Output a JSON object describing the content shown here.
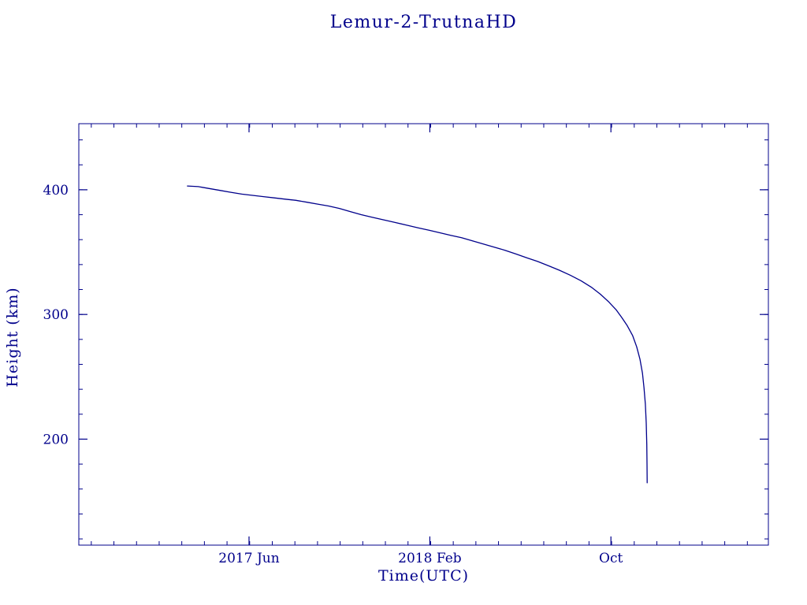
{
  "page": {
    "title": "Lemur-2-TrutnaHD"
  },
  "chart_data": {
    "type": "line",
    "title": "Lemur-2-TrutnaHD",
    "xlabel": "Time(UTC)",
    "ylabel": "Height (km)",
    "legend": "none",
    "grid": false,
    "background": "#ffffff",
    "line_color": "#00008b",
    "axis_color": "#00008b",
    "text_color": "#00008b",
    "xlim": [
      2016.79,
      2019.33
    ],
    "ylim": [
      115,
      453
    ],
    "x_ticks_major": [
      {
        "value": 2017.417,
        "label": "2017 Jun"
      },
      {
        "value": 2018.083,
        "label": "2018 Feb"
      },
      {
        "value": 2018.75,
        "label": "Oct"
      }
    ],
    "x_minor_step_years": 0.08333,
    "y_ticks_major": [
      {
        "value": 200,
        "label": "200"
      },
      {
        "value": 300,
        "label": "300"
      },
      {
        "value": 400,
        "label": "400"
      }
    ],
    "y_minor_step": 20,
    "series": [
      {
        "name": "Lemur-2-TrutnaHD height",
        "points": [
          [
            2017.19,
            403
          ],
          [
            2017.23,
            402.5
          ],
          [
            2017.27,
            401
          ],
          [
            2017.31,
            399.5
          ],
          [
            2017.35,
            398
          ],
          [
            2017.39,
            396.5
          ],
          [
            2017.43,
            395.5
          ],
          [
            2017.47,
            394.5
          ],
          [
            2017.51,
            393.5
          ],
          [
            2017.55,
            392.5
          ],
          [
            2017.59,
            391.5
          ],
          [
            2017.63,
            390
          ],
          [
            2017.67,
            388.5
          ],
          [
            2017.71,
            387
          ],
          [
            2017.75,
            385
          ],
          [
            2017.79,
            382.5
          ],
          [
            2017.83,
            380
          ],
          [
            2017.87,
            378
          ],
          [
            2017.91,
            376
          ],
          [
            2017.95,
            374
          ],
          [
            2018.0,
            371.5
          ],
          [
            2018.04,
            369.5
          ],
          [
            2018.08,
            367.5
          ],
          [
            2018.12,
            365.5
          ],
          [
            2018.16,
            363.5
          ],
          [
            2018.2,
            361.5
          ],
          [
            2018.24,
            359
          ],
          [
            2018.28,
            356.5
          ],
          [
            2018.32,
            354
          ],
          [
            2018.36,
            351.5
          ],
          [
            2018.4,
            348.5
          ],
          [
            2018.44,
            345.5
          ],
          [
            2018.48,
            342.5
          ],
          [
            2018.52,
            339
          ],
          [
            2018.56,
            335.5
          ],
          [
            2018.6,
            331.5
          ],
          [
            2018.64,
            327
          ],
          [
            2018.68,
            321.5
          ],
          [
            2018.71,
            316.5
          ],
          [
            2018.74,
            310.5
          ],
          [
            2018.77,
            303.5
          ],
          [
            2018.79,
            297.5
          ],
          [
            2018.81,
            291
          ],
          [
            2018.83,
            283
          ],
          [
            2018.845,
            274
          ],
          [
            2018.857,
            264
          ],
          [
            2018.866,
            253
          ],
          [
            2018.872,
            241
          ],
          [
            2018.877,
            228
          ],
          [
            2018.88,
            213
          ],
          [
            2018.882,
            196
          ],
          [
            2018.883,
            180
          ],
          [
            2018.8835,
            165
          ]
        ]
      }
    ]
  }
}
